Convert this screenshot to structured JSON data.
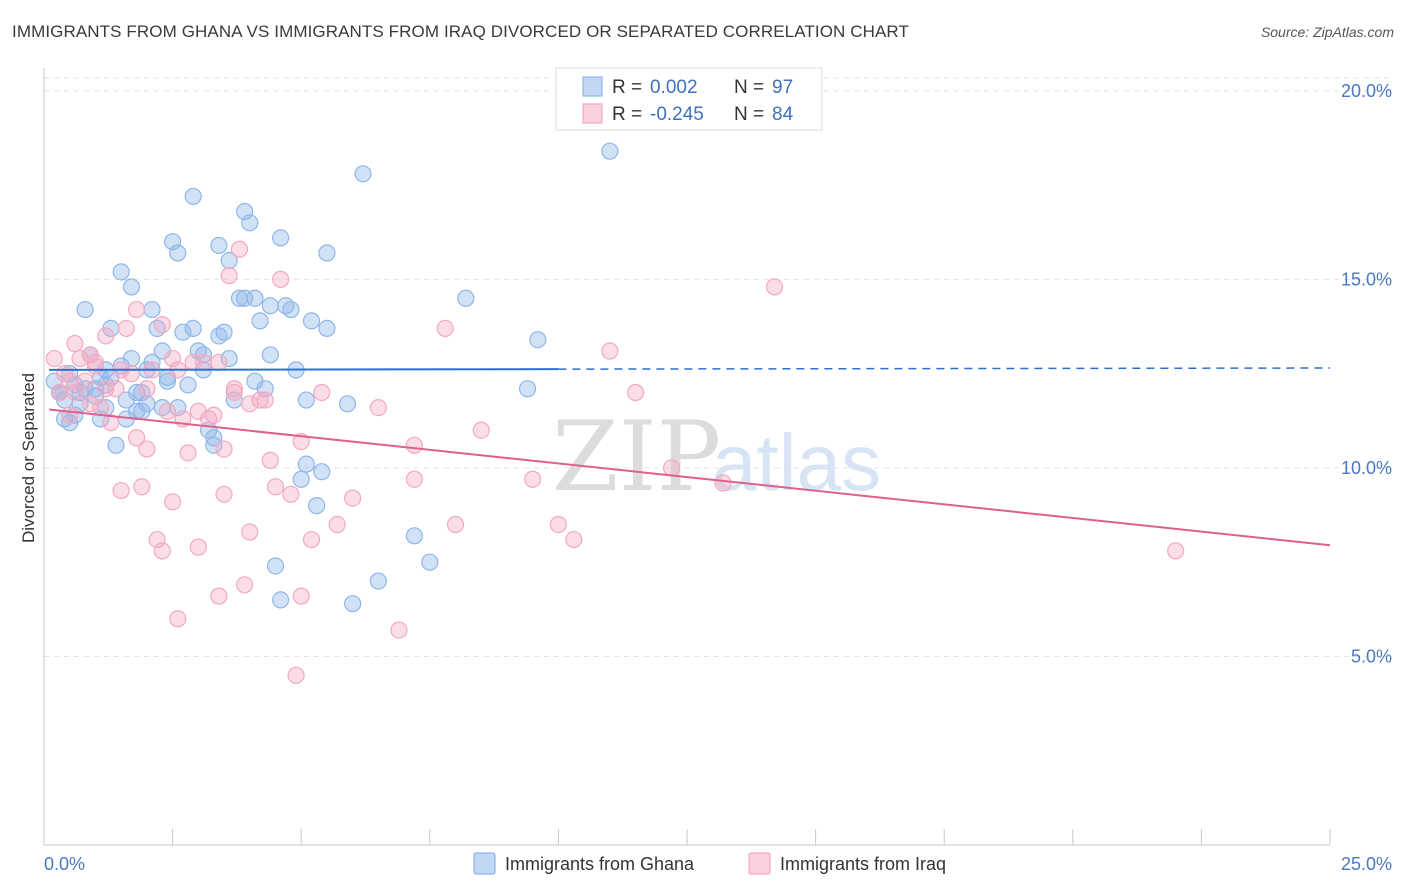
{
  "title": "IMMIGRANTS FROM GHANA VS IMMIGRANTS FROM IRAQ DIVORCED OR SEPARATED CORRELATION CHART",
  "source": "Source: ZipAtlas.com",
  "chart_data": {
    "type": "scatter",
    "title": "IMMIGRANTS FROM GHANA VS IMMIGRANTS FROM IRAQ DIVORCED OR SEPARATED CORRELATION CHART",
    "xlabel": "",
    "ylabel": "Divorced or Separated",
    "xlim": [
      0,
      25
    ],
    "ylim": [
      0,
      20.5
    ],
    "x_tick_labels": [
      "0.0%",
      "25.0%"
    ],
    "y_ticks": [
      5,
      10,
      15,
      20
    ],
    "y_tick_labels": [
      "5.0%",
      "10.0%",
      "15.0%",
      "20.0%"
    ],
    "grid": true,
    "legend_position": "top-center",
    "watermark": {
      "zip": "ZIP",
      "atlas": "atlas"
    },
    "series": [
      {
        "name": "Immigrants from Ghana",
        "color": "#8fb6e8",
        "line_color": "#2f6fd0",
        "R": "0.002",
        "N": "97",
        "trend": {
          "x": [
            0.1,
            25
          ],
          "y": [
            12.6,
            12.65
          ],
          "solid_until_x": 10
        },
        "x": [
          0.2,
          0.3,
          0.4,
          0.5,
          0.5,
          0.6,
          0.7,
          0.8,
          0.9,
          1.0,
          1.0,
          1.1,
          1.2,
          1.2,
          1.3,
          1.4,
          1.5,
          1.5,
          1.6,
          1.7,
          1.7,
          1.8,
          1.9,
          2.0,
          2.0,
          2.1,
          2.2,
          2.3,
          2.4,
          2.5,
          2.6,
          2.7,
          2.8,
          2.9,
          3.0,
          3.1,
          3.2,
          3.3,
          3.4,
          3.5,
          3.6,
          3.7,
          3.8,
          3.9,
          4.0,
          4.1,
          4.2,
          4.3,
          4.4,
          4.5,
          4.6,
          4.7,
          4.8,
          5.0,
          5.1,
          5.2,
          5.3,
          5.4,
          5.5,
          6.0,
          6.2,
          6.5,
          7.2,
          7.5,
          8.2,
          9.4,
          9.6,
          11.0,
          12.0,
          0.4,
          0.6,
          0.8,
          1.1,
          1.3,
          1.6,
          1.9,
          2.1,
          2.4,
          2.6,
          2.9,
          3.1,
          3.4,
          3.6,
          3.9,
          4.1,
          4.4,
          4.6,
          4.9,
          5.1,
          5.5,
          5.9,
          0.3,
          0.7,
          1.2,
          1.8,
          2.3,
          3.3
        ],
        "y": [
          12.3,
          12.0,
          11.8,
          11.2,
          12.5,
          11.4,
          12.0,
          14.2,
          13.0,
          12.1,
          11.9,
          12.4,
          12.2,
          11.6,
          13.7,
          10.6,
          15.2,
          12.7,
          11.3,
          14.8,
          12.9,
          12.0,
          11.5,
          12.6,
          11.7,
          14.2,
          13.7,
          11.6,
          12.3,
          16.0,
          15.7,
          13.6,
          12.2,
          17.2,
          13.1,
          12.6,
          11.0,
          10.6,
          15.9,
          13.6,
          15.5,
          11.8,
          14.5,
          16.8,
          16.5,
          14.5,
          13.9,
          12.1,
          13.0,
          7.4,
          6.5,
          14.3,
          14.2,
          9.7,
          10.1,
          13.9,
          9.0,
          9.9,
          15.7,
          6.4,
          17.8,
          7.0,
          8.2,
          7.5,
          14.5,
          12.1,
          13.4,
          18.4,
          19.4,
          11.3,
          12.2,
          12.1,
          11.3,
          12.4,
          11.8,
          12.0,
          12.8,
          12.4,
          11.6,
          13.7,
          13.0,
          13.5,
          12.9,
          14.5,
          12.3,
          14.3,
          16.1,
          12.6,
          11.8,
          13.7,
          11.7,
          12.0,
          11.7,
          12.6,
          11.5,
          13.1,
          10.8
        ],
        "point_r": 8
      },
      {
        "name": "Immigrants from Iraq",
        "color": "#f3a9c3",
        "line_color": "#e0608d",
        "R": "-0.245",
        "N": "84",
        "trend": {
          "x": [
            0.1,
            25
          ],
          "y": [
            11.55,
            7.95
          ]
        },
        "x": [
          0.2,
          0.3,
          0.4,
          0.5,
          0.6,
          0.7,
          0.8,
          0.9,
          1.0,
          1.1,
          1.2,
          1.3,
          1.4,
          1.5,
          1.6,
          1.7,
          1.8,
          1.9,
          2.0,
          2.1,
          2.2,
          2.3,
          2.4,
          2.5,
          2.6,
          2.7,
          2.8,
          2.9,
          3.0,
          3.1,
          3.2,
          3.3,
          3.4,
          3.5,
          3.6,
          3.7,
          3.8,
          3.9,
          4.0,
          4.2,
          4.4,
          4.6,
          4.8,
          5.0,
          5.2,
          5.4,
          5.7,
          6.0,
          6.5,
          6.9,
          7.2,
          7.8,
          8.5,
          9.5,
          10.0,
          10.3,
          11.0,
          11.5,
          12.2,
          13.2,
          14.2,
          22.0,
          0.5,
          1.0,
          1.5,
          2.0,
          2.5,
          3.0,
          3.5,
          4.0,
          4.5,
          5.0,
          1.2,
          2.3,
          3.4,
          4.3,
          0.9,
          1.8,
          2.6,
          3.7,
          4.9,
          0.6,
          7.2,
          8.0
        ],
        "y": [
          12.9,
          12.0,
          12.5,
          11.4,
          13.3,
          12.9,
          12.3,
          11.7,
          12.8,
          11.6,
          13.5,
          11.2,
          12.1,
          12.6,
          13.7,
          12.5,
          10.8,
          9.5,
          10.5,
          12.6,
          8.1,
          7.8,
          11.5,
          9.1,
          6.0,
          11.3,
          10.4,
          12.8,
          7.9,
          12.8,
          11.3,
          11.4,
          6.6,
          10.5,
          15.1,
          12.0,
          15.8,
          6.9,
          8.3,
          11.8,
          10.2,
          15.0,
          9.3,
          10.7,
          8.1,
          12.0,
          8.5,
          9.2,
          11.6,
          5.7,
          10.6,
          13.7,
          11.0,
          9.7,
          8.5,
          8.1,
          13.1,
          12.0,
          10.0,
          9.6,
          14.8,
          7.8,
          12.3,
          12.7,
          9.4,
          12.1,
          12.9,
          11.5,
          9.3,
          11.7,
          9.5,
          6.6,
          12.1,
          13.8,
          12.8,
          11.8,
          13.0,
          14.2,
          12.6,
          12.1,
          4.5,
          12.0,
          9.7,
          8.5
        ],
        "point_r": 8
      }
    ]
  },
  "legend_bottom": [
    "Immigrants from Ghana",
    "Immigrants from Iraq"
  ],
  "stats_legend": {
    "r_label": "R =",
    "n_label": "N ="
  }
}
